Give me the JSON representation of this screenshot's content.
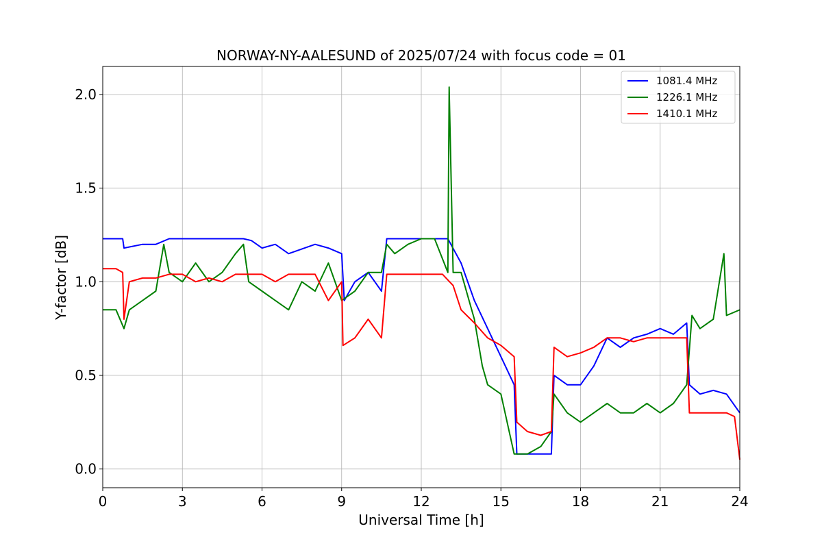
{
  "chart_data": {
    "type": "line",
    "title": "NORWAY-NY-AALESUND of 2025/07/24 with focus code = 01",
    "xlabel": "Universal Time [h]",
    "ylabel": "Y-factor [dB]",
    "xlim": [
      0,
      24
    ],
    "ylim": [
      -0.1,
      2.15
    ],
    "xticks": [
      0,
      3,
      6,
      9,
      12,
      15,
      18,
      21,
      24
    ],
    "xtick_labels": [
      "0",
      "3",
      "6",
      "9",
      "12",
      "15",
      "18",
      "21",
      "24"
    ],
    "yticks": [
      0.0,
      0.5,
      1.0,
      1.5,
      2.0
    ],
    "ytick_labels": [
      "0.0",
      "0.5",
      "1.0",
      "1.5",
      "2.0"
    ],
    "grid": true,
    "legend_position": "top-right",
    "series": [
      {
        "name": "1081.4 MHz",
        "color": "#0000ff",
        "x": [
          0,
          0.5,
          0.75,
          0.8,
          1.5,
          2.0,
          2.5,
          3.0,
          4.0,
          5.0,
          5.3,
          5.6,
          6.0,
          6.5,
          7.0,
          8.0,
          8.5,
          9.0,
          9.1,
          9.5,
          10.0,
          10.5,
          10.7,
          11.0,
          12.0,
          13.0,
          13.5,
          14.0,
          14.5,
          15.0,
          15.5,
          15.6,
          16.0,
          16.5,
          16.9,
          17.0,
          17.5,
          18.0,
          18.5,
          19.0,
          19.5,
          20.0,
          20.5,
          21.0,
          21.5,
          22.0,
          22.1,
          22.5,
          23.0,
          23.5,
          24.0
        ],
        "y": [
          1.23,
          1.23,
          1.23,
          1.18,
          1.2,
          1.2,
          1.23,
          1.23,
          1.23,
          1.23,
          1.23,
          1.22,
          1.18,
          1.2,
          1.15,
          1.2,
          1.18,
          1.15,
          0.9,
          1.0,
          1.05,
          0.95,
          1.23,
          1.23,
          1.23,
          1.23,
          1.1,
          0.9,
          0.75,
          0.6,
          0.45,
          0.08,
          0.08,
          0.08,
          0.08,
          0.5,
          0.45,
          0.45,
          0.55,
          0.7,
          0.65,
          0.7,
          0.72,
          0.75,
          0.72,
          0.78,
          0.45,
          0.4,
          0.42,
          0.4,
          0.3
        ]
      },
      {
        "name": "1226.1 MHz",
        "color": "#008000",
        "x": [
          0,
          0.5,
          0.8,
          1.0,
          1.5,
          2.0,
          2.3,
          2.5,
          3.0,
          3.5,
          4.0,
          4.5,
          5.0,
          5.3,
          5.5,
          6.0,
          6.5,
          7.0,
          7.5,
          8.0,
          8.5,
          9.0,
          9.5,
          10.0,
          10.5,
          10.7,
          11.0,
          11.5,
          12.0,
          12.5,
          13.0,
          13.05,
          13.2,
          13.5,
          14.0,
          14.3,
          14.5,
          15.0,
          15.5,
          16.0,
          16.5,
          16.9,
          17.0,
          17.5,
          18.0,
          18.5,
          19.0,
          19.5,
          20.0,
          20.5,
          21.0,
          21.5,
          22.0,
          22.2,
          22.5,
          23.0,
          23.4,
          23.5,
          24.0
        ],
        "y": [
          0.85,
          0.85,
          0.75,
          0.85,
          0.9,
          0.95,
          1.2,
          1.05,
          1.0,
          1.1,
          1.0,
          1.05,
          1.15,
          1.2,
          1.0,
          0.95,
          0.9,
          0.85,
          1.0,
          0.95,
          1.1,
          0.9,
          0.95,
          1.05,
          1.05,
          1.2,
          1.15,
          1.2,
          1.23,
          1.23,
          1.05,
          2.04,
          1.05,
          1.05,
          0.8,
          0.55,
          0.45,
          0.4,
          0.08,
          0.08,
          0.12,
          0.2,
          0.4,
          0.3,
          0.25,
          0.3,
          0.35,
          0.3,
          0.3,
          0.35,
          0.3,
          0.35,
          0.45,
          0.82,
          0.75,
          0.8,
          1.15,
          0.82,
          0.85
        ]
      },
      {
        "name": "1410.1 MHz",
        "color": "#ff0000",
        "x": [
          0,
          0.5,
          0.75,
          0.8,
          1.0,
          1.5,
          2.0,
          2.5,
          3.0,
          3.5,
          4.0,
          4.5,
          5.0,
          5.5,
          6.0,
          6.5,
          7.0,
          7.5,
          8.0,
          8.5,
          9.0,
          9.05,
          9.5,
          10.0,
          10.5,
          10.7,
          11.0,
          12.0,
          12.8,
          13.2,
          13.5,
          14.0,
          14.5,
          15.0,
          15.5,
          15.6,
          16.0,
          16.5,
          16.9,
          17.0,
          17.5,
          18.0,
          18.5,
          19.0,
          19.5,
          20.0,
          20.5,
          21.0,
          21.5,
          22.0,
          22.1,
          22.5,
          23.0,
          23.5,
          23.8,
          24.0
        ],
        "y": [
          1.07,
          1.07,
          1.05,
          0.8,
          1.0,
          1.02,
          1.02,
          1.04,
          1.04,
          1.0,
          1.02,
          1.0,
          1.04,
          1.04,
          1.04,
          1.0,
          1.04,
          1.04,
          1.04,
          0.9,
          1.0,
          0.66,
          0.7,
          0.8,
          0.7,
          1.04,
          1.04,
          1.04,
          1.04,
          0.98,
          0.85,
          0.78,
          0.7,
          0.66,
          0.6,
          0.25,
          0.2,
          0.18,
          0.2,
          0.65,
          0.6,
          0.62,
          0.65,
          0.7,
          0.7,
          0.68,
          0.7,
          0.7,
          0.7,
          0.7,
          0.3,
          0.3,
          0.3,
          0.3,
          0.28,
          0.05
        ]
      }
    ]
  }
}
